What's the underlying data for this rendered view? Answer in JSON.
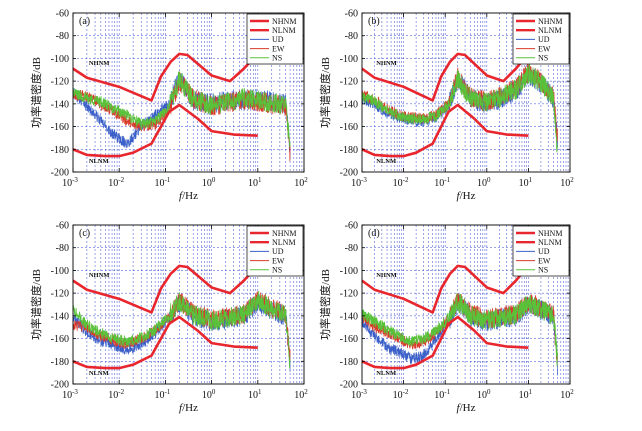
{
  "figure_title": "",
  "colors": {
    "NHNM": "#e8262d",
    "NLNM": "#e8262d",
    "UD": "#3a5fc8",
    "EW": "#d93a2a",
    "NS": "#59c23a",
    "grid": "#3d4fd1",
    "axis": "#000000"
  },
  "chart_data": [
    {
      "type": "line",
      "panel_label": "(a)",
      "xlabel": "f/Hz",
      "ylabel": "功率谱密度/dB",
      "xscale": "log",
      "xlim": [
        0.001,
        100
      ],
      "ylim": [
        -200,
        -60
      ],
      "xticks": [
        0.001,
        0.01,
        0.1,
        1,
        10,
        100
      ],
      "xtick_labels": [
        "10-3",
        "10-2",
        "10-1",
        "100",
        "101",
        "102"
      ],
      "yticks": [
        -60,
        -80,
        -100,
        -120,
        -140,
        -160,
        -180,
        -200
      ],
      "ytick_labels": [
        "-60",
        "-80",
        "-100",
        "-120",
        "-140",
        "-160",
        "-180",
        "-200"
      ],
      "legend": [
        "NHNM",
        "NLNM",
        "UD",
        "EW",
        "NS"
      ],
      "legend_position": "top-right",
      "annotations": [
        "NHNM",
        "NLNM"
      ],
      "series": [
        {
          "name": "NHNM",
          "x": [
            0.001,
            0.002,
            0.01,
            0.05,
            0.08,
            0.13,
            0.2,
            0.3,
            1,
            2.5,
            5,
            8,
            10
          ],
          "values": [
            -109,
            -117,
            -125,
            -137,
            -116,
            -103,
            -96,
            -97,
            -115,
            -120,
            -109,
            -100,
            -92
          ]
        },
        {
          "name": "NLNM",
          "x": [
            0.001,
            0.002,
            0.005,
            0.01,
            0.02,
            0.05,
            0.08,
            0.12,
            0.2,
            0.5,
            1,
            3,
            10
          ],
          "values": [
            -180,
            -185,
            -186,
            -186,
            -183,
            -175,
            -160,
            -147,
            -141,
            -153,
            -164,
            -167,
            -168
          ]
        },
        {
          "name": "UD",
          "x": [
            0.001,
            0.002,
            0.004,
            0.008,
            0.015,
            0.03,
            0.06,
            0.12,
            0.2,
            0.4,
            1,
            2,
            5,
            10,
            20,
            40,
            50
          ],
          "values": [
            -130,
            -142,
            -155,
            -168,
            -175,
            -160,
            -150,
            -140,
            -118,
            -137,
            -140,
            -137,
            -137,
            -135,
            -138,
            -140,
            -182
          ]
        },
        {
          "name": "EW",
          "x": [
            0.001,
            0.002,
            0.004,
            0.008,
            0.015,
            0.03,
            0.06,
            0.12,
            0.2,
            0.4,
            1,
            2,
            5,
            10,
            20,
            40,
            50
          ],
          "values": [
            -132,
            -133,
            -140,
            -148,
            -155,
            -160,
            -158,
            -145,
            -120,
            -135,
            -142,
            -140,
            -136,
            -138,
            -140,
            -142,
            -185
          ]
        },
        {
          "name": "NS",
          "x": [
            0.001,
            0.002,
            0.004,
            0.008,
            0.015,
            0.03,
            0.06,
            0.12,
            0.2,
            0.4,
            1,
            2,
            5,
            10,
            20,
            40,
            50
          ],
          "values": [
            -130,
            -135,
            -138,
            -145,
            -150,
            -158,
            -155,
            -143,
            -118,
            -136,
            -141,
            -139,
            -135,
            -137,
            -139,
            -141,
            -180
          ]
        }
      ]
    },
    {
      "type": "line",
      "panel_label": "(b)",
      "xlabel": "f/Hz",
      "ylabel": "功率谱密度/dB",
      "xscale": "log",
      "xlim": [
        0.001,
        100
      ],
      "ylim": [
        -200,
        -60
      ],
      "xticks": [
        0.001,
        0.01,
        0.1,
        1,
        10,
        100
      ],
      "xtick_labels": [
        "10-3",
        "10-2",
        "10-1",
        "100",
        "101",
        "102"
      ],
      "yticks": [
        -60,
        -80,
        -100,
        -120,
        -140,
        -160,
        -180,
        -200
      ],
      "ytick_labels": [
        "-60",
        "-80",
        "-100",
        "-120",
        "-140",
        "-160",
        "-180",
        "-200"
      ],
      "legend": [
        "NHNM",
        "NLNM",
        "UD",
        "EW",
        "NS"
      ],
      "legend_position": "top-right",
      "annotations": [
        "NHNM",
        "NLNM"
      ],
      "series": [
        {
          "name": "NHNM",
          "x": [
            0.001,
            0.002,
            0.01,
            0.05,
            0.08,
            0.13,
            0.2,
            0.3,
            1,
            2.5,
            5,
            8,
            10
          ],
          "values": [
            -109,
            -117,
            -125,
            -137,
            -116,
            -103,
            -96,
            -97,
            -115,
            -120,
            -109,
            -100,
            -92
          ]
        },
        {
          "name": "NLNM",
          "x": [
            0.001,
            0.002,
            0.005,
            0.01,
            0.02,
            0.05,
            0.08,
            0.12,
            0.2,
            0.5,
            1,
            3,
            10
          ],
          "values": [
            -180,
            -185,
            -186,
            -186,
            -183,
            -175,
            -160,
            -147,
            -141,
            -153,
            -164,
            -167,
            -168
          ]
        },
        {
          "name": "UD",
          "x": [
            0.001,
            0.002,
            0.004,
            0.008,
            0.015,
            0.03,
            0.06,
            0.12,
            0.2,
            0.4,
            1,
            2,
            5,
            10,
            20,
            40,
            50
          ],
          "values": [
            -135,
            -140,
            -148,
            -152,
            -155,
            -155,
            -152,
            -142,
            -118,
            -135,
            -140,
            -136,
            -128,
            -115,
            -122,
            -135,
            -172
          ]
        },
        {
          "name": "EW",
          "x": [
            0.001,
            0.002,
            0.004,
            0.008,
            0.015,
            0.03,
            0.06,
            0.12,
            0.2,
            0.4,
            1,
            2,
            5,
            10,
            20,
            40,
            50
          ],
          "values": [
            -132,
            -136,
            -145,
            -150,
            -152,
            -153,
            -150,
            -140,
            -117,
            -134,
            -138,
            -134,
            -126,
            -112,
            -120,
            -133,
            -170
          ]
        },
        {
          "name": "NS",
          "x": [
            0.001,
            0.002,
            0.004,
            0.008,
            0.015,
            0.03,
            0.06,
            0.12,
            0.2,
            0.4,
            1,
            2,
            5,
            10,
            20,
            40,
            50
          ],
          "values": [
            -133,
            -138,
            -146,
            -151,
            -153,
            -154,
            -151,
            -141,
            -118,
            -135,
            -139,
            -135,
            -127,
            -113,
            -121,
            -134,
            -182
          ]
        }
      ]
    },
    {
      "type": "line",
      "panel_label": "(c)",
      "xlabel": "f/Hz",
      "ylabel": "功率谱密度/dB",
      "xscale": "log",
      "xlim": [
        0.001,
        100
      ],
      "ylim": [
        -200,
        -60
      ],
      "xticks": [
        0.001,
        0.01,
        0.1,
        1,
        10,
        100
      ],
      "xtick_labels": [
        "10-3",
        "10-2",
        "10-1",
        "100",
        "101",
        "102"
      ],
      "yticks": [
        -60,
        -80,
        -100,
        -120,
        -140,
        -160,
        -180,
        -200
      ],
      "ytick_labels": [
        "-60",
        "-80",
        "-100",
        "-120",
        "-140",
        "-160",
        "-180",
        "-200"
      ],
      "legend": [
        "NHNM",
        "NLNM",
        "UD",
        "EW",
        "NS"
      ],
      "legend_position": "top-right",
      "annotations": [
        "NHNM",
        "NLNM"
      ],
      "series": [
        {
          "name": "NHNM",
          "x": [
            0.001,
            0.002,
            0.01,
            0.05,
            0.08,
            0.13,
            0.2,
            0.3,
            1,
            2.5,
            5,
            8,
            10
          ],
          "values": [
            -109,
            -117,
            -125,
            -137,
            -116,
            -103,
            -96,
            -97,
            -115,
            -120,
            -109,
            -100,
            -92
          ]
        },
        {
          "name": "NLNM",
          "x": [
            0.001,
            0.002,
            0.005,
            0.01,
            0.02,
            0.05,
            0.08,
            0.12,
            0.2,
            0.5,
            1,
            3,
            10
          ],
          "values": [
            -180,
            -185,
            -186,
            -186,
            -183,
            -175,
            -160,
            -147,
            -141,
            -153,
            -164,
            -167,
            -168
          ]
        },
        {
          "name": "UD",
          "x": [
            0.001,
            0.002,
            0.004,
            0.008,
            0.015,
            0.03,
            0.06,
            0.12,
            0.2,
            0.4,
            1,
            2,
            5,
            10,
            20,
            40,
            50
          ],
          "values": [
            -140,
            -155,
            -162,
            -166,
            -170,
            -165,
            -155,
            -142,
            -128,
            -140,
            -145,
            -143,
            -140,
            -128,
            -135,
            -140,
            -182
          ]
        },
        {
          "name": "EW",
          "x": [
            0.001,
            0.002,
            0.004,
            0.008,
            0.015,
            0.03,
            0.06,
            0.12,
            0.2,
            0.4,
            1,
            2,
            5,
            10,
            20,
            40,
            50
          ],
          "values": [
            -148,
            -150,
            -158,
            -162,
            -165,
            -160,
            -153,
            -141,
            -126,
            -138,
            -143,
            -141,
            -138,
            -125,
            -133,
            -139,
            -178
          ]
        },
        {
          "name": "NS",
          "x": [
            0.001,
            0.002,
            0.004,
            0.008,
            0.015,
            0.03,
            0.06,
            0.12,
            0.2,
            0.4,
            1,
            2,
            5,
            10,
            20,
            40,
            50
          ],
          "values": [
            -135,
            -148,
            -155,
            -160,
            -163,
            -159,
            -152,
            -140,
            -127,
            -139,
            -144,
            -142,
            -139,
            -126,
            -134,
            -140,
            -185
          ]
        }
      ]
    },
    {
      "type": "line",
      "panel_label": "(d)",
      "xlabel": "f/Hz",
      "ylabel": "功率谱密度/dB",
      "xscale": "log",
      "xlim": [
        0.001,
        100
      ],
      "ylim": [
        -200,
        -60
      ],
      "xticks": [
        0.001,
        0.01,
        0.1,
        1,
        10,
        100
      ],
      "xtick_labels": [
        "10-3",
        "10-2",
        "10-1",
        "100",
        "101",
        "102"
      ],
      "yticks": [
        -60,
        -80,
        -100,
        -120,
        -140,
        -160,
        -180,
        -200
      ],
      "ytick_labels": [
        "-60",
        "-80",
        "-100",
        "-120",
        "-140",
        "-160",
        "-180",
        "-200"
      ],
      "legend": [
        "NHNM",
        "NLNM",
        "UD",
        "EW",
        "NS"
      ],
      "legend_position": "top-right",
      "annotations": [
        "NHNM",
        "NLNM"
      ],
      "series": [
        {
          "name": "NHNM",
          "x": [
            0.001,
            0.002,
            0.01,
            0.05,
            0.08,
            0.13,
            0.2,
            0.3,
            1,
            2.5,
            5,
            8,
            10
          ],
          "values": [
            -109,
            -117,
            -125,
            -137,
            -116,
            -103,
            -96,
            -97,
            -115,
            -120,
            -109,
            -100,
            -92
          ]
        },
        {
          "name": "NLNM",
          "x": [
            0.001,
            0.002,
            0.005,
            0.01,
            0.02,
            0.05,
            0.08,
            0.12,
            0.2,
            0.5,
            1,
            3,
            10
          ],
          "values": [
            -180,
            -185,
            -186,
            -186,
            -183,
            -175,
            -160,
            -147,
            -141,
            -153,
            -164,
            -167,
            -168
          ]
        },
        {
          "name": "UD",
          "x": [
            0.001,
            0.002,
            0.004,
            0.008,
            0.015,
            0.03,
            0.06,
            0.12,
            0.2,
            0.4,
            1,
            2,
            5,
            10,
            20,
            40,
            50
          ],
          "values": [
            -145,
            -158,
            -168,
            -172,
            -178,
            -175,
            -160,
            -145,
            -128,
            -140,
            -145,
            -143,
            -140,
            -130,
            -135,
            -140,
            -185
          ]
        },
        {
          "name": "EW",
          "x": [
            0.001,
            0.002,
            0.004,
            0.008,
            0.015,
            0.03,
            0.06,
            0.12,
            0.2,
            0.4,
            1,
            2,
            5,
            10,
            20,
            40,
            50
          ],
          "values": [
            -140,
            -150,
            -155,
            -160,
            -165,
            -163,
            -155,
            -143,
            -126,
            -138,
            -143,
            -141,
            -138,
            -128,
            -133,
            -139,
            -182
          ]
        },
        {
          "name": "NS",
          "x": [
            0.001,
            0.002,
            0.004,
            0.008,
            0.015,
            0.03,
            0.06,
            0.12,
            0.2,
            0.4,
            1,
            2,
            5,
            10,
            20,
            40,
            50
          ],
          "values": [
            -138,
            -145,
            -152,
            -158,
            -162,
            -160,
            -153,
            -142,
            -127,
            -139,
            -144,
            -142,
            -139,
            -129,
            -134,
            -140,
            -180
          ]
        }
      ]
    }
  ]
}
